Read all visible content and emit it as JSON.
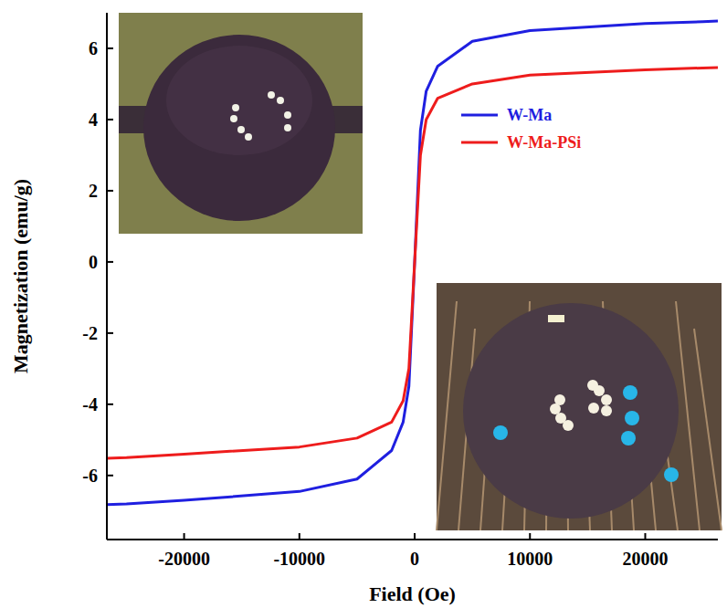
{
  "chart_data": {
    "type": "line",
    "x_label": "Field (Oe)",
    "y_label": "Magnetization (emu/g)",
    "x": [
      -26700,
      -25000,
      -20000,
      -10000,
      -5000,
      -2000,
      -1000,
      -500,
      0,
      500,
      1000,
      2000,
      5000,
      10000,
      20000,
      25000,
      26300
    ],
    "series": [
      {
        "name": "W-Ma",
        "color": "#1f1fe0",
        "values": [
          -6.82,
          -6.8,
          -6.7,
          -6.45,
          -6.1,
          -5.3,
          -4.5,
          -3.5,
          0,
          3.7,
          4.8,
          5.5,
          6.2,
          6.5,
          6.7,
          6.75,
          6.77
        ]
      },
      {
        "name": "W-Ma-PSi",
        "color": "#ee1c1c",
        "values": [
          -5.52,
          -5.5,
          -5.4,
          -5.2,
          -4.95,
          -4.5,
          -3.9,
          -3.0,
          0,
          3.0,
          4.0,
          4.6,
          5.0,
          5.25,
          5.4,
          5.45,
          5.46
        ]
      }
    ],
    "xlim": [
      -26700,
      26300
    ],
    "ylim": [
      -7.8,
      7.0
    ],
    "xticks": [
      -20000,
      -10000,
      0,
      10000,
      20000
    ],
    "yticks": [
      -6,
      -4,
      -2,
      0,
      2,
      4,
      6
    ],
    "legend": "upper right",
    "grid": false
  }
}
